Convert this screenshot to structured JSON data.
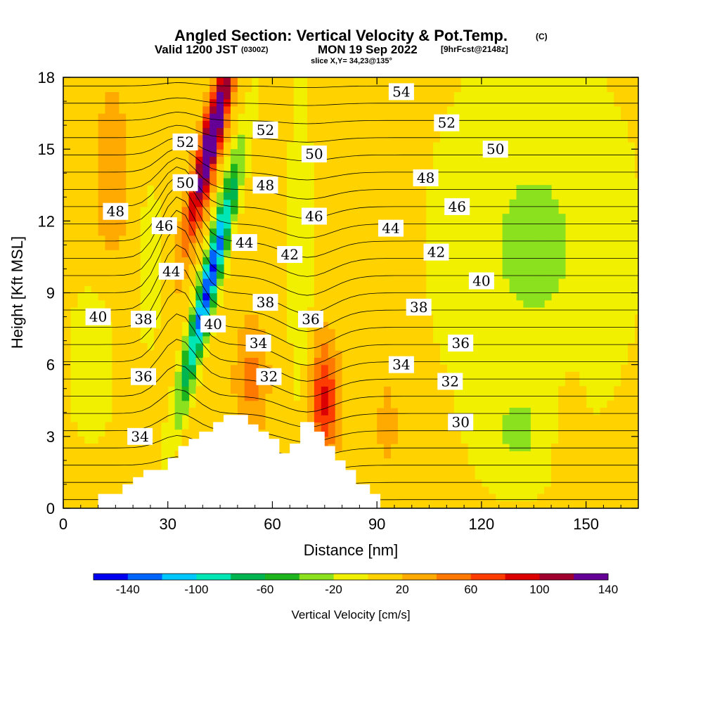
{
  "header": {
    "title": "Angled Section: Vertical Velocity & Pot.Temp.",
    "title_mark": "(C)",
    "sub_a": "Valid 1200 JST",
    "sub_b": "(0300Z)",
    "sub_c": "MON 19 Sep 2022",
    "sub_d": "[9hrFcst@2148z]",
    "slice": "slice X,Y= 34,23@135°"
  },
  "chart_data": {
    "type": "contour",
    "xlabel": "Distance [nm]",
    "ylabel": "Height [Kft MSL]",
    "xlim": [
      0,
      165
    ],
    "ylim": [
      0,
      18
    ],
    "xticks": [
      0,
      30,
      60,
      90,
      120,
      150
    ],
    "yticks": [
      0,
      3,
      6,
      9,
      12,
      15,
      18
    ],
    "filled_field": {
      "name": "Vertical Velocity [cm/s]",
      "contour_levels": [
        -160,
        -140,
        -120,
        -100,
        -80,
        -60,
        -40,
        -20,
        0,
        20,
        40,
        60,
        80,
        100,
        120,
        140,
        160
      ],
      "colors": [
        "#0000f0",
        "#0064ff",
        "#00c8ff",
        "#00e6b4",
        "#00b450",
        "#1eb41e",
        "#8ce11e",
        "#f0f000",
        "#ffd200",
        "#ffaa00",
        "#ff7800",
        "#ff3c00",
        "#dc0000",
        "#a0002d",
        "#640096"
      ],
      "features": [
        {
          "kind": "updraft",
          "x_nm": 38,
          "z_kft": [
            9,
            18
          ],
          "peak_cm_s": 150
        },
        {
          "kind": "downdraft",
          "x_nm": 46,
          "z_kft": [
            5,
            13
          ],
          "peak_cm_s": -150
        },
        {
          "kind": "updraft",
          "x_nm": 75,
          "z_kft": [
            2,
            7
          ],
          "peak_cm_s": 80
        }
      ]
    },
    "contour_field": {
      "name": "Potential temperature (C)",
      "interval": 1,
      "labels": [
        {
          "v": "54",
          "x": 97,
          "z": 17.4
        },
        {
          "v": "52",
          "x": 110,
          "z": 16.1
        },
        {
          "v": "52",
          "x": 58,
          "z": 15.8
        },
        {
          "v": "52",
          "x": 35,
          "z": 15.3
        },
        {
          "v": "50",
          "x": 124,
          "z": 15.0
        },
        {
          "v": "50",
          "x": 72,
          "z": 14.8
        },
        {
          "v": "50",
          "x": 35,
          "z": 13.6
        },
        {
          "v": "48",
          "x": 104,
          "z": 13.8
        },
        {
          "v": "48",
          "x": 58,
          "z": 13.5
        },
        {
          "v": "48",
          "x": 15,
          "z": 12.4
        },
        {
          "v": "46",
          "x": 113,
          "z": 12.6
        },
        {
          "v": "46",
          "x": 72,
          "z": 12.2
        },
        {
          "v": "46",
          "x": 29,
          "z": 11.8
        },
        {
          "v": "44",
          "x": 94,
          "z": 11.7
        },
        {
          "v": "44",
          "x": 52,
          "z": 11.1
        },
        {
          "v": "44",
          "x": 31,
          "z": 9.9
        },
        {
          "v": "42",
          "x": 107,
          "z": 10.7
        },
        {
          "v": "42",
          "x": 65,
          "z": 10.6
        },
        {
          "v": "40",
          "x": 120,
          "z": 9.5
        },
        {
          "v": "40",
          "x": 43,
          "z": 7.7
        },
        {
          "v": "40",
          "x": 10,
          "z": 8.0
        },
        {
          "v": "38",
          "x": 102,
          "z": 8.4
        },
        {
          "v": "38",
          "x": 58,
          "z": 8.6
        },
        {
          "v": "38",
          "x": 23,
          "z": 7.9
        },
        {
          "v": "36",
          "x": 114,
          "z": 6.9
        },
        {
          "v": "36",
          "x": 71,
          "z": 7.9
        },
        {
          "v": "36",
          "x": 23,
          "z": 5.5
        },
        {
          "v": "34",
          "x": 97,
          "z": 6.0
        },
        {
          "v": "34",
          "x": 56,
          "z": 6.9
        },
        {
          "v": "34",
          "x": 22,
          "z": 3.0
        },
        {
          "v": "32",
          "x": 111,
          "z": 5.3
        },
        {
          "v": "32",
          "x": 59,
          "z": 5.5
        },
        {
          "v": "30",
          "x": 114,
          "z": 3.6
        }
      ]
    },
    "terrain": [
      [
        10,
        0.3
      ],
      [
        10,
        0.6
      ],
      [
        17,
        0.6
      ],
      [
        17,
        1.0
      ],
      [
        20,
        1.0
      ],
      [
        20,
        1.3
      ],
      [
        23,
        1.3
      ],
      [
        23,
        1.6
      ],
      [
        30,
        1.6
      ],
      [
        30,
        2.1
      ],
      [
        33,
        2.1
      ],
      [
        33,
        2.6
      ],
      [
        36,
        2.6
      ],
      [
        36,
        2.9
      ],
      [
        39,
        2.9
      ],
      [
        39,
        3.2
      ],
      [
        43,
        3.2
      ],
      [
        43,
        3.6
      ],
      [
        46,
        3.6
      ],
      [
        46,
        3.9
      ],
      [
        53,
        3.9
      ],
      [
        53,
        3.5
      ],
      [
        56,
        3.5
      ],
      [
        56,
        3.2
      ],
      [
        59,
        3.2
      ],
      [
        59,
        2.9
      ],
      [
        62,
        2.9
      ],
      [
        62,
        2.3
      ],
      [
        65,
        2.3
      ],
      [
        65,
        2.7
      ],
      [
        68,
        2.7
      ],
      [
        68,
        3.6
      ],
      [
        72,
        3.6
      ],
      [
        72,
        3.2
      ],
      [
        75,
        3.2
      ],
      [
        75,
        2.6
      ],
      [
        78,
        2.6
      ],
      [
        78,
        2.0
      ],
      [
        81,
        2.0
      ],
      [
        81,
        1.6
      ],
      [
        84,
        1.6
      ],
      [
        84,
        1.0
      ],
      [
        88,
        1.0
      ],
      [
        88,
        0.6
      ],
      [
        91,
        0.6
      ],
      [
        91,
        0.3
      ]
    ],
    "colorbar": {
      "label": "Vertical Velocity [cm/s]",
      "tick_labels": [
        "-140",
        "-100",
        "-60",
        "-20",
        "20",
        "60",
        "100",
        "140"
      ]
    }
  },
  "colors": {
    "background": "#ffffff",
    "contour": "#000000",
    "terrain": "#ffffff"
  }
}
